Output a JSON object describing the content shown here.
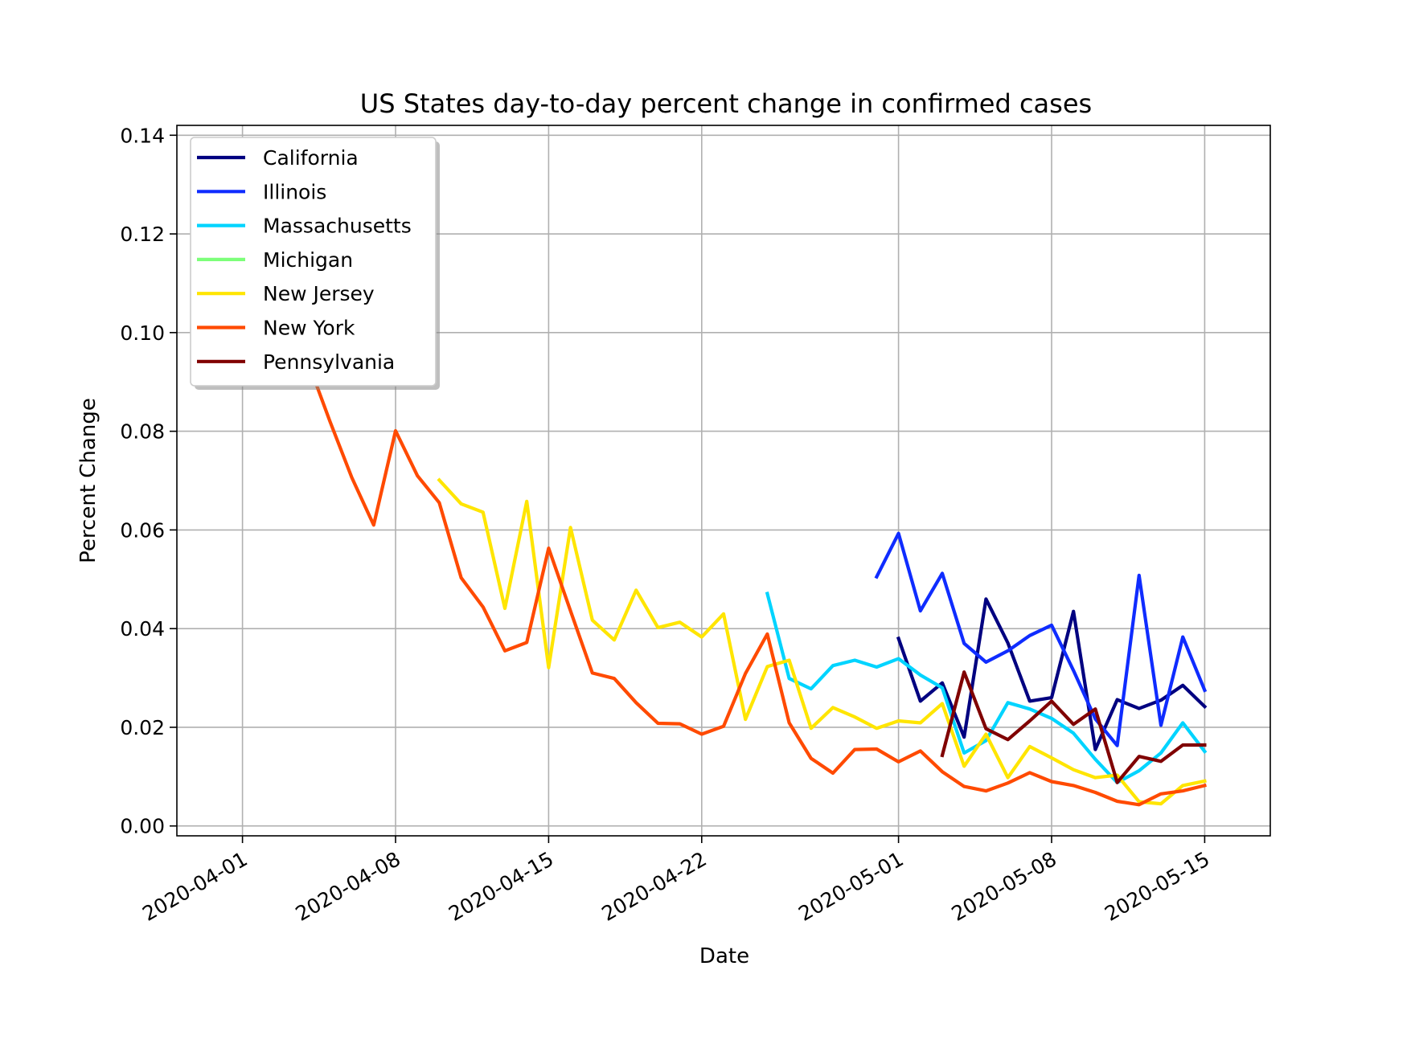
{
  "chart_data": {
    "type": "line",
    "title": "US States day-to-day percent change in confirmed cases",
    "xlabel": "Date",
    "ylabel": "Percent Change",
    "x_axis": {
      "kind": "date",
      "range": [
        "2020-03-29",
        "2020-05-18"
      ],
      "ticks": [
        "2020-04-01",
        "2020-04-08",
        "2020-04-15",
        "2020-04-22",
        "2020-05-01",
        "2020-05-08",
        "2020-05-15"
      ]
    },
    "y_axis": {
      "range": [
        -0.002,
        0.142
      ],
      "ticks": [
        "0.00",
        "0.02",
        "0.04",
        "0.06",
        "0.08",
        "0.10",
        "0.12",
        "0.14"
      ]
    },
    "grid": true,
    "legend_position": "top-left",
    "series": [
      {
        "name": "California",
        "color": "#000080",
        "points": [
          [
            "2020-05-01",
            0.038
          ],
          [
            "2020-05-02",
            0.0253
          ],
          [
            "2020-05-03",
            0.029
          ],
          [
            "2020-05-04",
            0.018
          ],
          [
            "2020-05-05",
            0.046
          ],
          [
            "2020-05-06",
            0.0371
          ],
          [
            "2020-05-07",
            0.0253
          ],
          [
            "2020-05-08",
            0.026
          ],
          [
            "2020-05-09",
            0.0435
          ],
          [
            "2020-05-10",
            0.0155
          ],
          [
            "2020-05-11",
            0.0256
          ],
          [
            "2020-05-12",
            0.0238
          ],
          [
            "2020-05-13",
            0.0255
          ],
          [
            "2020-05-14",
            0.0285
          ],
          [
            "2020-05-15",
            0.0242
          ]
        ]
      },
      {
        "name": "Illinois",
        "color": "#0f2cff",
        "points": [
          [
            "2020-04-30",
            0.0505
          ],
          [
            "2020-05-01",
            0.0593
          ],
          [
            "2020-05-02",
            0.0436
          ],
          [
            "2020-05-03",
            0.0512
          ],
          [
            "2020-05-04",
            0.037
          ],
          [
            "2020-05-05",
            0.0332
          ],
          [
            "2020-05-06",
            0.0355
          ],
          [
            "2020-05-07",
            0.0386
          ],
          [
            "2020-05-08",
            0.0407
          ],
          [
            "2020-05-09",
            0.0315
          ],
          [
            "2020-05-10",
            0.0217
          ],
          [
            "2020-05-11",
            0.0163
          ],
          [
            "2020-05-12",
            0.0508
          ],
          [
            "2020-05-13",
            0.0204
          ],
          [
            "2020-05-14",
            0.0383
          ],
          [
            "2020-05-15",
            0.0275
          ]
        ]
      },
      {
        "name": "Massachusetts",
        "color": "#00d4ff",
        "points": [
          [
            "2020-04-25",
            0.0471
          ],
          [
            "2020-04-26",
            0.0299
          ],
          [
            "2020-04-27",
            0.0278
          ],
          [
            "2020-04-28",
            0.0325
          ],
          [
            "2020-04-29",
            0.0336
          ],
          [
            "2020-04-30",
            0.0322
          ],
          [
            "2020-05-01",
            0.0339
          ],
          [
            "2020-05-02",
            0.0306
          ],
          [
            "2020-05-03",
            0.028
          ],
          [
            "2020-05-04",
            0.0148
          ],
          [
            "2020-05-05",
            0.0173
          ],
          [
            "2020-05-06",
            0.025
          ],
          [
            "2020-05-07",
            0.0237
          ],
          [
            "2020-05-08",
            0.0218
          ],
          [
            "2020-05-09",
            0.0188
          ],
          [
            "2020-05-10",
            0.0135
          ],
          [
            "2020-05-11",
            0.0088
          ],
          [
            "2020-05-12",
            0.0112
          ],
          [
            "2020-05-13",
            0.0148
          ],
          [
            "2020-05-14",
            0.0209
          ],
          [
            "2020-05-15",
            0.0151
          ]
        ]
      },
      {
        "name": "Michigan",
        "color": "#7dff7a",
        "points": []
      },
      {
        "name": "New Jersey",
        "color": "#ffe500",
        "points": [
          [
            "2020-04-10",
            0.0701
          ],
          [
            "2020-04-11",
            0.0653
          ],
          [
            "2020-04-12",
            0.0636
          ],
          [
            "2020-04-13",
            0.0441
          ],
          [
            "2020-04-14",
            0.0658
          ],
          [
            "2020-04-15",
            0.0321
          ],
          [
            "2020-04-16",
            0.0605
          ],
          [
            "2020-04-17",
            0.0417
          ],
          [
            "2020-04-18",
            0.0377
          ],
          [
            "2020-04-19",
            0.0478
          ],
          [
            "2020-04-20",
            0.0402
          ],
          [
            "2020-04-21",
            0.0413
          ],
          [
            "2020-04-22",
            0.0383
          ],
          [
            "2020-04-23",
            0.043
          ],
          [
            "2020-04-24",
            0.0216
          ],
          [
            "2020-04-25",
            0.0323
          ],
          [
            "2020-04-26",
            0.0336
          ],
          [
            "2020-04-27",
            0.0198
          ],
          [
            "2020-04-28",
            0.024
          ],
          [
            "2020-04-29",
            0.0221
          ],
          [
            "2020-04-30",
            0.0198
          ],
          [
            "2020-05-01",
            0.0213
          ],
          [
            "2020-05-02",
            0.0209
          ],
          [
            "2020-05-03",
            0.0248
          ],
          [
            "2020-05-04",
            0.0121
          ],
          [
            "2020-05-05",
            0.0186
          ],
          [
            "2020-05-06",
            0.0098
          ],
          [
            "2020-05-07",
            0.0161
          ],
          [
            "2020-05-08",
            0.0138
          ],
          [
            "2020-05-09",
            0.0114
          ],
          [
            "2020-05-10",
            0.0098
          ],
          [
            "2020-05-11",
            0.0103
          ],
          [
            "2020-05-12",
            0.0049
          ],
          [
            "2020-05-13",
            0.0045
          ],
          [
            "2020-05-14",
            0.0082
          ],
          [
            "2020-05-15",
            0.0091
          ]
        ]
      },
      {
        "name": "New York",
        "color": "#ff4a00",
        "points": [
          [
            "2020-04-04",
            0.094
          ],
          [
            "2020-04-05",
            0.082
          ],
          [
            "2020-04-06",
            0.0706
          ],
          [
            "2020-04-07",
            0.061
          ],
          [
            "2020-04-08",
            0.0801
          ],
          [
            "2020-04-09",
            0.071
          ],
          [
            "2020-04-10",
            0.0655
          ],
          [
            "2020-04-11",
            0.0503
          ],
          [
            "2020-04-12",
            0.0444
          ],
          [
            "2020-04-13",
            0.0355
          ],
          [
            "2020-04-14",
            0.0372
          ],
          [
            "2020-04-15",
            0.0563
          ],
          [
            "2020-04-16",
            0.0436
          ],
          [
            "2020-04-17",
            0.031
          ],
          [
            "2020-04-18",
            0.0299
          ],
          [
            "2020-04-19",
            0.025
          ],
          [
            "2020-04-20",
            0.0208
          ],
          [
            "2020-04-21",
            0.0207
          ],
          [
            "2020-04-22",
            0.0186
          ],
          [
            "2020-04-23",
            0.0202
          ],
          [
            "2020-04-24",
            0.0309
          ],
          [
            "2020-04-25",
            0.0389
          ],
          [
            "2020-04-26",
            0.0209
          ],
          [
            "2020-04-27",
            0.0137
          ],
          [
            "2020-04-28",
            0.0107
          ],
          [
            "2020-04-29",
            0.0155
          ],
          [
            "2020-04-30",
            0.0156
          ],
          [
            "2020-05-01",
            0.013
          ],
          [
            "2020-05-02",
            0.0152
          ],
          [
            "2020-05-03",
            0.011
          ],
          [
            "2020-05-04",
            0.008
          ],
          [
            "2020-05-05",
            0.0071
          ],
          [
            "2020-05-06",
            0.0087
          ],
          [
            "2020-05-07",
            0.0108
          ],
          [
            "2020-05-08",
            0.009
          ],
          [
            "2020-05-09",
            0.0082
          ],
          [
            "2020-05-10",
            0.0068
          ],
          [
            "2020-05-11",
            0.005
          ],
          [
            "2020-05-12",
            0.0043
          ],
          [
            "2020-05-13",
            0.0065
          ],
          [
            "2020-05-14",
            0.0071
          ],
          [
            "2020-05-15",
            0.0082
          ]
        ]
      },
      {
        "name": "Pennsylvania",
        "color": "#800000",
        "points": [
          [
            "2020-05-03",
            0.0143
          ],
          [
            "2020-05-04",
            0.0312
          ],
          [
            "2020-05-05",
            0.0197
          ],
          [
            "2020-05-06",
            0.0175
          ],
          [
            "2020-05-07",
            0.0213
          ],
          [
            "2020-05-08",
            0.0253
          ],
          [
            "2020-05-09",
            0.0206
          ],
          [
            "2020-05-10",
            0.0237
          ],
          [
            "2020-05-11",
            0.0088
          ],
          [
            "2020-05-12",
            0.0141
          ],
          [
            "2020-05-13",
            0.0131
          ],
          [
            "2020-05-14",
            0.0164
          ],
          [
            "2020-05-15",
            0.0164
          ]
        ]
      }
    ]
  }
}
